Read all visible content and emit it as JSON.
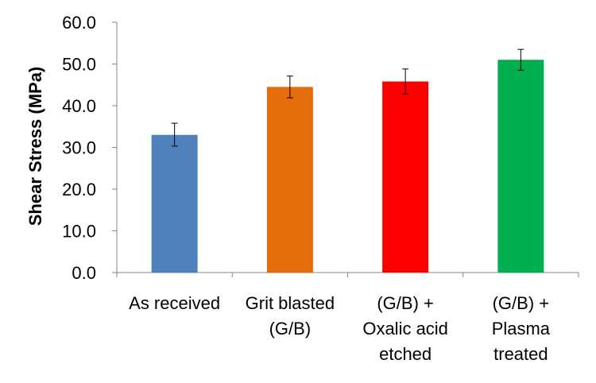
{
  "chart_data": {
    "type": "bar",
    "title": "",
    "xlabel": "",
    "ylabel": "Shear Stress (MPa)",
    "ylim": [
      0,
      60
    ],
    "yticks": [
      "0.0",
      "10.0",
      "20.0",
      "30.0",
      "40.0",
      "50.0",
      "60.0"
    ],
    "grid": false,
    "legend": "none",
    "categories": [
      [
        "As received"
      ],
      [
        "Grit blasted",
        "(G/B)"
      ],
      [
        "(G/B) +",
        "Oxalic acid",
        "etched"
      ],
      [
        "(G/B) +",
        "Plasma",
        "treated"
      ]
    ],
    "values": [
      33.0,
      44.5,
      45.8,
      51.0
    ],
    "error_low": [
      30.3,
      41.9,
      42.8,
      48.5
    ],
    "error_high": [
      35.8,
      47.1,
      48.8,
      53.5
    ],
    "colors": [
      "#4F81BD",
      "#E46C0A",
      "#FF0000",
      "#00B050"
    ]
  }
}
